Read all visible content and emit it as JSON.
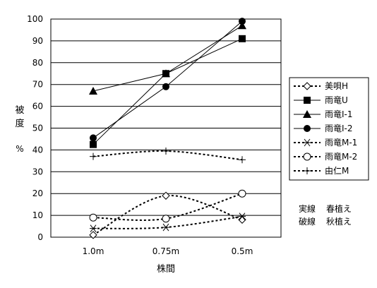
{
  "chart_data": {
    "type": "line",
    "title": "",
    "xlabel": "株間",
    "ylabel_chars": [
      "被",
      "度"
    ],
    "ylabel_unit": "%",
    "categories": [
      "1.0m",
      "0.75m",
      "0.5m"
    ],
    "ylim": [
      0,
      100
    ],
    "yticks": [
      0,
      10,
      20,
      30,
      40,
      50,
      60,
      70,
      80,
      90,
      100
    ],
    "grid": true,
    "legend_position": "right",
    "series": [
      {
        "name": "美唄H",
        "values": [
          1,
          19,
          8
        ],
        "style": "dashed",
        "marker": "diamond-open"
      },
      {
        "name": "雨竜U",
        "values": [
          42.5,
          75,
          91
        ],
        "style": "solid",
        "marker": "square-filled"
      },
      {
        "name": "雨竜I-1",
        "values": [
          67,
          75,
          97
        ],
        "style": "solid",
        "marker": "triangle-filled"
      },
      {
        "name": "雨竜I-2",
        "values": [
          45.5,
          69,
          99
        ],
        "style": "solid",
        "marker": "circle-filled"
      },
      {
        "name": "雨竜M-1",
        "values": [
          4,
          4.5,
          9.5
        ],
        "style": "dashed",
        "marker": "asterisk"
      },
      {
        "name": "雨竜M-2",
        "values": [
          9,
          8.5,
          20
        ],
        "style": "dashed",
        "marker": "circle-open"
      },
      {
        "name": "由仁M",
        "values": [
          37,
          39.5,
          35.5
        ],
        "style": "dashed",
        "marker": "plus"
      }
    ],
    "notes": [
      {
        "key": "実線",
        "value": "春植え"
      },
      {
        "key": "破線",
        "value": "秋植え"
      }
    ]
  }
}
